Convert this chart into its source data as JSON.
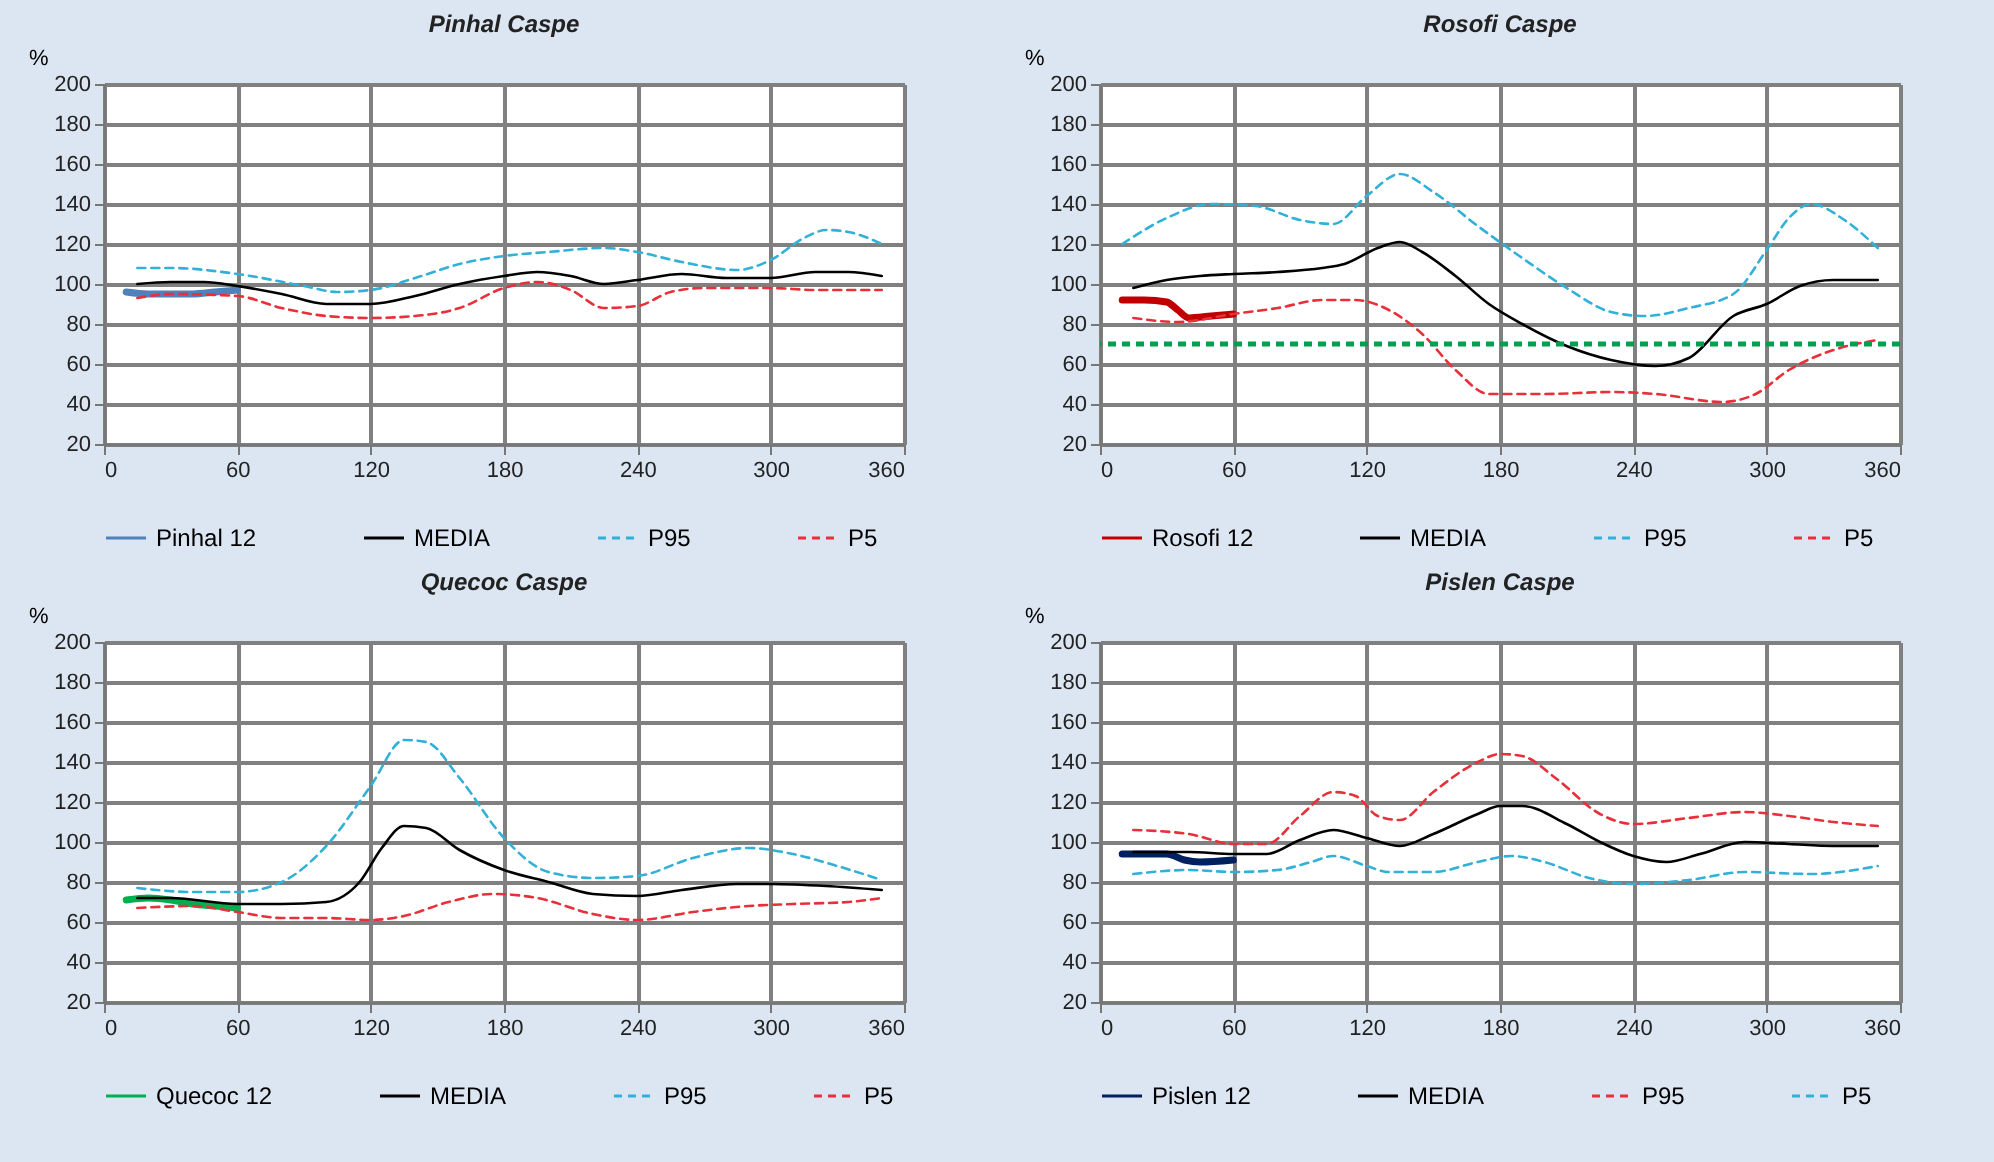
{
  "chart_data": [
    {
      "type": "line",
      "title": "Pinhal Caspe",
      "ylabel": "%",
      "xlim": [
        0,
        360
      ],
      "xticks": [
        0,
        60,
        120,
        180,
        240,
        300,
        360
      ],
      "ylim": [
        20,
        200
      ],
      "yticks": [
        20,
        40,
        60,
        80,
        100,
        120,
        140,
        160,
        180,
        200
      ],
      "grid": true,
      "legend": "bottom",
      "series": [
        {
          "name": "Pinhal 12",
          "color": "#4f81bd",
          "line_style": "solid",
          "x": [
            10,
            20,
            30,
            40,
            50,
            60
          ],
          "values": [
            96,
            95,
            95,
            95,
            96,
            97
          ]
        },
        {
          "name": "MEDIA",
          "color": "#000000",
          "line_style": "solid",
          "x": [
            15,
            30,
            45,
            60,
            80,
            100,
            120,
            140,
            160,
            180,
            195,
            210,
            225,
            240,
            260,
            280,
            300,
            320,
            335,
            350
          ],
          "values": [
            100,
            101,
            101,
            99,
            95,
            90,
            90,
            94,
            100,
            104,
            106,
            104,
            100,
            102,
            105,
            103,
            103,
            106,
            106,
            104
          ]
        },
        {
          "name": "P95",
          "color": "#31b0d8",
          "line_style": "dashed",
          "x": [
            15,
            30,
            60,
            90,
            105,
            120,
            140,
            160,
            180,
            200,
            225,
            240,
            260,
            285,
            300,
            315,
            325,
            335,
            350
          ],
          "values": [
            108,
            108,
            105,
            99,
            96,
            97,
            103,
            110,
            114,
            116,
            118,
            116,
            111,
            107,
            112,
            123,
            127,
            126,
            120
          ]
        },
        {
          "name": "P5",
          "color": "#e8303a",
          "line_style": "dashed",
          "x": [
            15,
            30,
            60,
            80,
            100,
            120,
            140,
            160,
            180,
            195,
            210,
            225,
            240,
            255,
            270,
            300,
            320,
            350
          ],
          "values": [
            93,
            95,
            94,
            88,
            84,
            83,
            84,
            88,
            98,
            101,
            97,
            88,
            89,
            96,
            98,
            98,
            97,
            97
          ]
        }
      ]
    },
    {
      "type": "line",
      "title": "Rosofi Caspe",
      "ylabel": "%",
      "xlim": [
        0,
        360
      ],
      "xticks": [
        0,
        60,
        120,
        180,
        240,
        300,
        360
      ],
      "ylim": [
        20,
        200
      ],
      "yticks": [
        20,
        40,
        60,
        80,
        100,
        120,
        140,
        160,
        180,
        200
      ],
      "grid": true,
      "legend": "bottom",
      "ref_lines": [
        {
          "axis": "y",
          "value": 70,
          "color": "#00a050",
          "line_style": "dashed"
        }
      ],
      "series": [
        {
          "name": "Rosofi 12",
          "color": "#c00000",
          "line_style": "solid",
          "x": [
            10,
            20,
            30,
            35,
            40,
            50,
            60
          ],
          "values": [
            92,
            92,
            91,
            87,
            83,
            84,
            85
          ]
        },
        {
          "name": "MEDIA",
          "color": "#000000",
          "line_style": "solid",
          "x": [
            15,
            30,
            45,
            60,
            80,
            100,
            110,
            125,
            135,
            145,
            160,
            175,
            190,
            210,
            230,
            250,
            265,
            285,
            300,
            315,
            330,
            350
          ],
          "values": [
            98,
            102,
            104,
            105,
            106,
            108,
            110,
            118,
            121,
            116,
            104,
            90,
            80,
            69,
            62,
            59,
            63,
            84,
            90,
            99,
            102,
            102
          ]
        },
        {
          "name": "P95",
          "color": "#31b0d8",
          "line_style": "dashed",
          "x": [
            10,
            30,
            50,
            70,
            90,
            105,
            120,
            135,
            150,
            170,
            190,
            210,
            230,
            245,
            265,
            285,
            300,
            310,
            320,
            335,
            350
          ],
          "values": [
            120,
            133,
            140,
            139,
            132,
            130,
            144,
            155,
            146,
            129,
            113,
            98,
            86,
            84,
            88,
            95,
            117,
            133,
            140,
            132,
            118
          ]
        },
        {
          "name": "P5",
          "color": "#e8303a",
          "line_style": "dashed",
          "x": [
            15,
            35,
            60,
            80,
            100,
            115,
            130,
            145,
            160,
            175,
            200,
            230,
            250,
            280,
            295,
            310,
            330,
            350
          ],
          "values": [
            83,
            81,
            85,
            88,
            92,
            92,
            87,
            75,
            57,
            45,
            45,
            46,
            45,
            41,
            45,
            57,
            67,
            72
          ]
        }
      ]
    },
    {
      "type": "line",
      "title": "Quecoc Caspe",
      "ylabel": "%",
      "xlim": [
        0,
        360
      ],
      "xticks": [
        0,
        60,
        120,
        180,
        240,
        300,
        360
      ],
      "ylim": [
        20,
        200
      ],
      "yticks": [
        20,
        40,
        60,
        80,
        100,
        120,
        140,
        160,
        180,
        200
      ],
      "grid": true,
      "legend": "bottom",
      "series": [
        {
          "name": "Quecoc 12",
          "color": "#00b050",
          "line_style": "solid",
          "x": [
            10,
            20,
            30,
            40,
            50,
            60
          ],
          "values": [
            71,
            72,
            71,
            69,
            68,
            67
          ]
        },
        {
          "name": "MEDIA",
          "color": "#000000",
          "line_style": "solid",
          "x": [
            15,
            30,
            60,
            80,
            100,
            115,
            125,
            135,
            145,
            160,
            180,
            200,
            220,
            240,
            260,
            285,
            300,
            325,
            350
          ],
          "values": [
            72,
            72,
            69,
            69,
            70,
            80,
            97,
            108,
            107,
            96,
            86,
            80,
            74,
            73,
            76,
            79,
            79,
            78,
            76
          ]
        },
        {
          "name": "P95",
          "color": "#31b0d8",
          "line_style": "dashed",
          "x": [
            15,
            40,
            60,
            80,
            100,
            120,
            135,
            145,
            160,
            180,
            200,
            220,
            240,
            265,
            290,
            310,
            330,
            350
          ],
          "values": [
            77,
            75,
            75,
            80,
            98,
            128,
            151,
            150,
            132,
            102,
            85,
            82,
            83,
            92,
            97,
            94,
            88,
            81
          ]
        },
        {
          "name": "P5",
          "color": "#e8303a",
          "line_style": "dashed",
          "x": [
            15,
            40,
            60,
            80,
            100,
            120,
            135,
            155,
            175,
            195,
            220,
            240,
            265,
            290,
            310,
            335,
            350
          ],
          "values": [
            67,
            68,
            65,
            62,
            62,
            61,
            63,
            70,
            74,
            72,
            64,
            61,
            65,
            68,
            69,
            70,
            72
          ]
        }
      ]
    },
    {
      "type": "line",
      "title": "Pislen Caspe",
      "ylabel": "%",
      "xlim": [
        0,
        360
      ],
      "xticks": [
        0,
        60,
        120,
        180,
        240,
        300,
        360
      ],
      "ylim": [
        20,
        200
      ],
      "yticks": [
        20,
        40,
        60,
        80,
        100,
        120,
        140,
        160,
        180,
        200
      ],
      "grid": true,
      "legend": "bottom",
      "series": [
        {
          "name": "Pislen 12",
          "color": "#002060",
          "line_style": "solid",
          "x": [
            10,
            20,
            30,
            38,
            45,
            60
          ],
          "values": [
            94,
            94,
            94,
            91,
            90,
            91
          ]
        },
        {
          "name": "MEDIA",
          "color": "#000000",
          "line_style": "solid",
          "x": [
            15,
            40,
            60,
            75,
            90,
            105,
            120,
            135,
            150,
            170,
            180,
            190,
            210,
            225,
            240,
            255,
            270,
            290,
            310,
            330,
            350
          ],
          "values": [
            95,
            95,
            94,
            94,
            101,
            106,
            102,
            98,
            104,
            114,
            118,
            118,
            109,
            100,
            93,
            90,
            94,
            100,
            99,
            98,
            98
          ]
        },
        {
          "name": "P95",
          "color": "#e8303a",
          "line_style": "dashed",
          "x": [
            15,
            40,
            60,
            75,
            90,
            105,
            115,
            125,
            135,
            150,
            170,
            180,
            190,
            205,
            225,
            240,
            265,
            290,
            310,
            330,
            350
          ],
          "values": [
            106,
            104,
            99,
            99,
            113,
            125,
            123,
            113,
            111,
            125,
            140,
            144,
            143,
            132,
            114,
            109,
            112,
            115,
            113,
            110,
            108
          ]
        },
        {
          "name": "P5",
          "color": "#31b0d8",
          "line_style": "dashed",
          "x": [
            15,
            40,
            60,
            80,
            95,
            105,
            120,
            130,
            150,
            170,
            185,
            200,
            220,
            240,
            265,
            290,
            320,
            350
          ],
          "values": [
            84,
            86,
            85,
            86,
            90,
            93,
            88,
            85,
            85,
            90,
            93,
            90,
            82,
            79,
            81,
            85,
            84,
            88
          ]
        }
      ]
    }
  ]
}
